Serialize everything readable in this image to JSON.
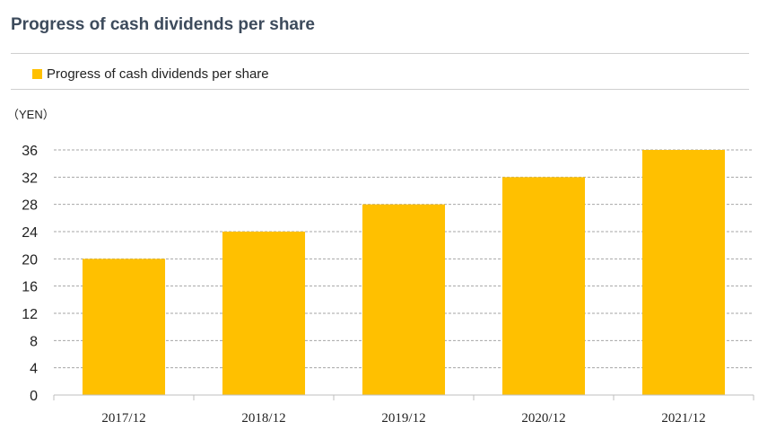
{
  "page": {
    "title": "Progress of cash dividends per share"
  },
  "colors": {
    "bar": "#FFC000",
    "title": "#3D4B5C",
    "gridline": "#A6A6A6",
    "axis": "#BFBFBF"
  },
  "chart_data": {
    "type": "bar",
    "title": "Progress of cash dividends per share",
    "unit_label": "（YEN）",
    "categories": [
      "2017/12",
      "2018/12",
      "2019/12",
      "2020/12",
      "2021/12"
    ],
    "series": [
      {
        "name": "Progress of cash dividends per share",
        "values": [
          20,
          24,
          28,
          32,
          36
        ]
      }
    ],
    "ylim": [
      0,
      36
    ],
    "yticks": [
      0,
      4,
      8,
      12,
      16,
      20,
      24,
      28,
      32,
      36
    ],
    "grid": true,
    "grid_style": "dashed",
    "legend_position": "top-left"
  }
}
